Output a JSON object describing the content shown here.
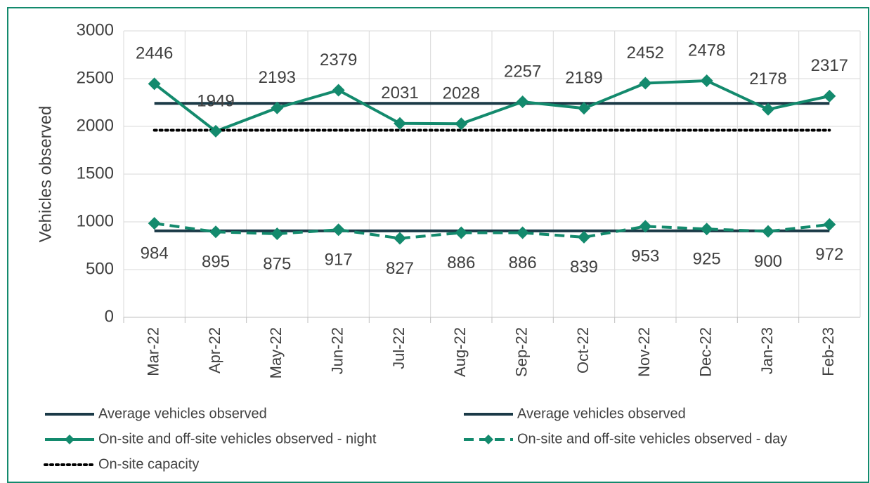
{
  "chart_data": {
    "type": "line",
    "y_label": "Vehicles observed",
    "categories": [
      "Mar-22",
      "Apr-22",
      "May-22",
      "Jun-22",
      "Jul-22",
      "Aug-22",
      "Sep-22",
      "Oct-22",
      "Nov-22",
      "Dec-22",
      "Jan-23",
      "Feb-23"
    ],
    "series": [
      {
        "name": "Average vehicles observed",
        "color": "#1b3a47",
        "style": "solid",
        "marker": null,
        "labels": null,
        "values": [
          2241,
          2241,
          2241,
          2241,
          2241,
          2241,
          2241,
          2241,
          2241,
          2241,
          2241,
          2241
        ]
      },
      {
        "name": "Average vehicles observed",
        "color": "#1b3a47",
        "style": "solid",
        "marker": null,
        "labels": null,
        "values": [
          905,
          905,
          905,
          905,
          905,
          905,
          905,
          905,
          905,
          905,
          905,
          905
        ]
      },
      {
        "name": "On-site and off-site vehicles observed - night",
        "color": "#138a6d",
        "style": "solid",
        "marker": "diamond",
        "labels": "above",
        "values": [
          2446,
          1949,
          2193,
          2379,
          2031,
          2028,
          2257,
          2189,
          2452,
          2478,
          2178,
          2317
        ]
      },
      {
        "name": "On-site and off-site vehicles observed - day",
        "color": "#138a6d",
        "style": "dashed",
        "marker": "diamond",
        "labels": "below",
        "values": [
          984,
          895,
          875,
          917,
          827,
          886,
          886,
          839,
          953,
          925,
          900,
          972
        ]
      },
      {
        "name": "On-site capacity",
        "color": "#000000",
        "style": "dotted",
        "marker": null,
        "labels": null,
        "values": [
          1960,
          1960,
          1960,
          1960,
          1960,
          1960,
          1960,
          1960,
          1960,
          1960,
          1960,
          1960
        ]
      }
    ],
    "ylim": [
      0,
      3000
    ],
    "yticks": [
      0,
      500,
      1000,
      1500,
      2000,
      2500,
      3000
    ],
    "grid": true
  }
}
